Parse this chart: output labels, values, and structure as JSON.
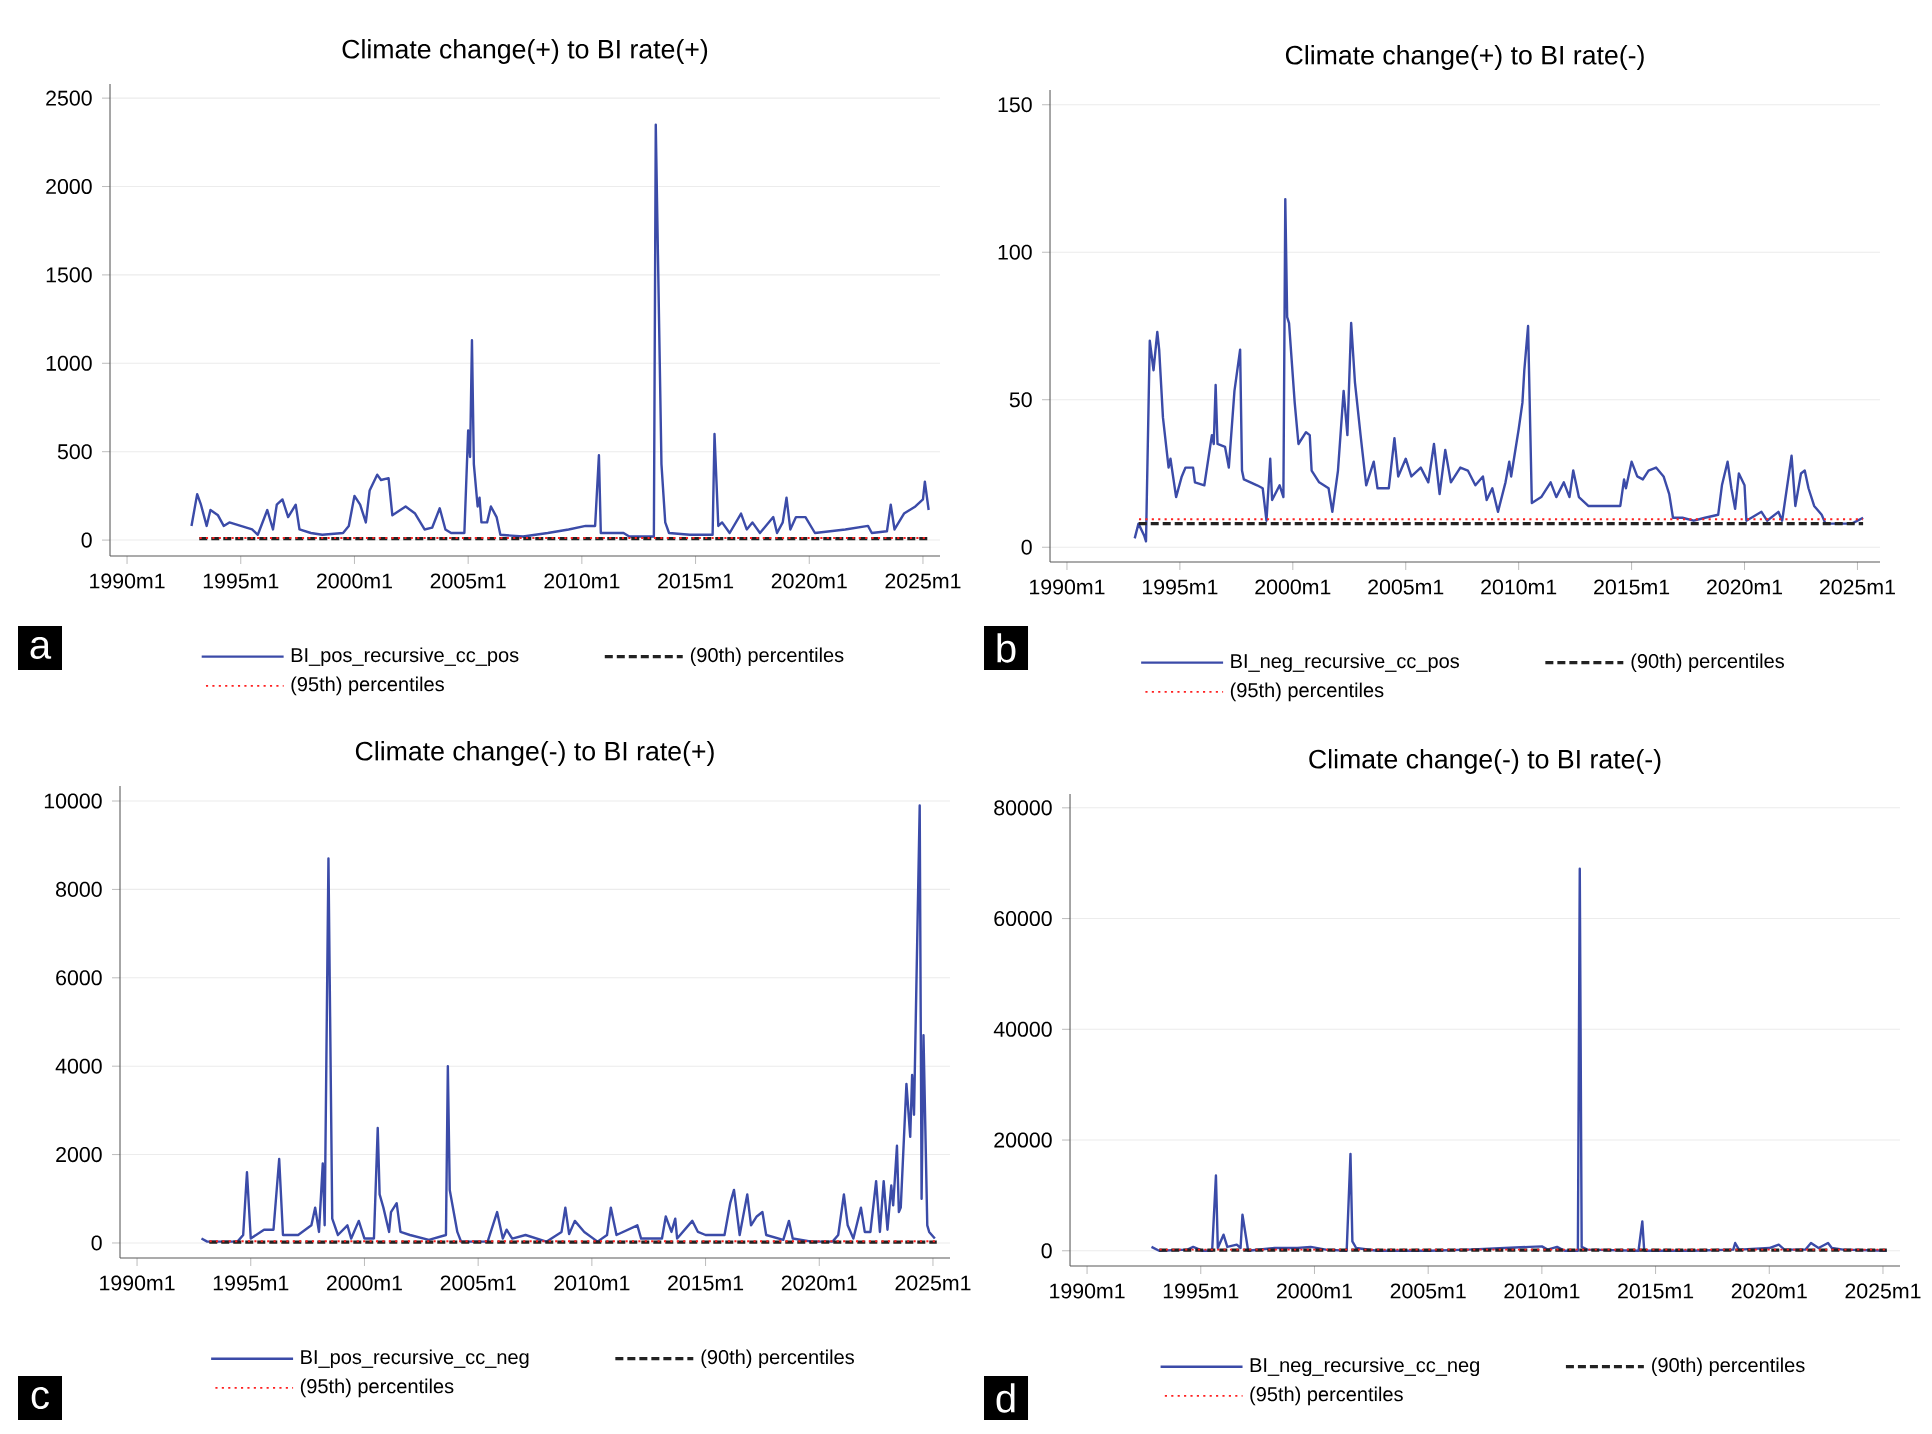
{
  "chart_data": [
    {
      "type": "line",
      "title": "Climate change(+) to BI rate(+)",
      "xlim": [
        "1989-04",
        "2025-10"
      ],
      "ylim": [
        -90,
        2580
      ],
      "xticks": [
        {
          "value": "1990-01",
          "label": "1990m1"
        },
        {
          "value": "1995-01",
          "label": "1995m1"
        },
        {
          "value": "2000-01",
          "label": "2000m1"
        },
        {
          "value": "2005-01",
          "label": "2005m1"
        },
        {
          "value": "2010-01",
          "label": "2010m1"
        },
        {
          "value": "2015-01",
          "label": "2015m1"
        },
        {
          "value": "2020-01",
          "label": "2020m1"
        },
        {
          "value": "2025-01",
          "label": "2025m1"
        }
      ],
      "yticks": [
        0,
        500,
        1000,
        1500,
        2000,
        2500
      ],
      "grid": "y",
      "legend": "bottom",
      "annotations": [
        "a"
      ],
      "series": [
        {
          "name": "BI_pos_recursive_cc_pos",
          "color": "#3b4ba8",
          "line_style": "solid",
          "x": [
            "1992-11",
            "1993-02",
            "1993-04",
            "1993-07",
            "1993-09",
            "1994-01",
            "1994-04",
            "1994-07",
            "1995-07",
            "1995-10",
            "1996-03",
            "1996-06",
            "1996-08",
            "1996-11",
            "1997-02",
            "1997-06",
            "1997-08",
            "1998-02",
            "1998-08",
            "1999-07",
            "1999-10",
            "2000-01",
            "2000-04",
            "2000-07",
            "2000-09",
            "2001-01",
            "2001-03",
            "2001-07",
            "2001-09",
            "2002-04",
            "2002-09",
            "2003-02",
            "2003-06",
            "2003-10",
            "2004-01",
            "2004-04",
            "2004-11",
            "2005-01",
            "2005-02",
            "2005-03",
            "2005-04",
            "2005-06",
            "2005-07",
            "2005-08",
            "2005-11",
            "2006-01",
            "2006-04",
            "2006-06",
            "2007-06",
            "2008-07",
            "2009-06",
            "2010-03",
            "2010-08",
            "2010-10",
            "2010-11",
            "2011-11",
            "2012-02",
            "2013-02",
            "2013-03",
            "2013-04",
            "2013-07",
            "2013-09",
            "2013-11",
            "2014-10",
            "2015-10",
            "2015-11",
            "2016-01",
            "2016-03",
            "2016-07",
            "2017-01",
            "2017-04",
            "2017-07",
            "2017-11",
            "2018-06",
            "2018-08",
            "2018-11",
            "2019-01",
            "2019-03",
            "2019-06",
            "2019-11",
            "2020-04",
            "2021-08",
            "2022-08",
            "2022-10",
            "2023-06",
            "2023-08",
            "2023-10",
            "2024-03",
            "2024-09",
            "2025-01",
            "2025-02",
            "2025-04"
          ],
          "values": [
            80,
            260,
            200,
            80,
            170,
            140,
            80,
            100,
            60,
            30,
            170,
            60,
            200,
            230,
            130,
            200,
            60,
            40,
            30,
            40,
            80,
            250,
            200,
            100,
            280,
            370,
            340,
            350,
            140,
            190,
            150,
            60,
            70,
            180,
            60,
            40,
            40,
            620,
            470,
            1130,
            430,
            190,
            240,
            100,
            100,
            190,
            130,
            30,
            20,
            40,
            60,
            80,
            80,
            480,
            40,
            40,
            20,
            20,
            20,
            2350,
            430,
            100,
            40,
            30,
            30,
            600,
            80,
            100,
            40,
            150,
            60,
            100,
            40,
            130,
            40,
            100,
            240,
            60,
            130,
            130,
            40,
            60,
            80,
            40,
            50,
            200,
            60,
            150,
            190,
            230,
            330,
            170
          ]
        },
        {
          "name": "(90th) percentiles",
          "color": "#222222",
          "line_style": "dashed",
          "x": [
            "1993-01",
            "2025-04"
          ],
          "values": [
            8,
            8
          ]
        },
        {
          "name": "(95th) percentiles",
          "color": "#ff2020",
          "line_style": "dotted",
          "x": [
            "1993-01",
            "2025-04"
          ],
          "values": [
            12,
            12
          ]
        }
      ]
    },
    {
      "type": "line",
      "title": "Climate change(+) to BI rate(-)",
      "xlim": [
        "1989-04",
        "2026-01"
      ],
      "ylim": [
        -5,
        155
      ],
      "xticks": [
        {
          "value": "1990-01",
          "label": "1990m1"
        },
        {
          "value": "1995-01",
          "label": "1995m1"
        },
        {
          "value": "2000-01",
          "label": "2000m1"
        },
        {
          "value": "2005-01",
          "label": "2005m1"
        },
        {
          "value": "2010-01",
          "label": "2010m1"
        },
        {
          "value": "2015-01",
          "label": "2015m1"
        },
        {
          "value": "2020-01",
          "label": "2020m1"
        },
        {
          "value": "2025-01",
          "label": "2025m1"
        }
      ],
      "yticks": [
        0,
        50,
        100,
        150
      ],
      "grid": "y",
      "legend": "bottom",
      "annotations": [
        "b"
      ],
      "series": [
        {
          "name": "BI_neg_recursive_cc_pos",
          "color": "#3b4ba8",
          "line_style": "solid",
          "x": [
            "1993-01",
            "1993-03",
            "1993-06",
            "1993-07",
            "1993-09",
            "1993-11",
            "1994-01",
            "1994-02",
            "1994-04",
            "1994-07",
            "1994-08",
            "1994-11",
            "1995-02",
            "1995-04",
            "1995-08",
            "1995-09",
            "1996-02",
            "1996-06",
            "1996-07",
            "1996-08",
            "1996-09",
            "1997-01",
            "1997-03",
            "1997-06",
            "1997-09",
            "1997-10",
            "1997-11",
            "1998-06",
            "1998-09",
            "1998-11",
            "1999-01",
            "1999-02",
            "1999-06",
            "1999-08",
            "1999-09",
            "1999-10",
            "1999-11",
            "2000-02",
            "2000-04",
            "2000-08",
            "2000-10",
            "2000-11",
            "2001-03",
            "2001-08",
            "2001-10",
            "2002-01",
            "2002-04",
            "2002-06",
            "2002-08",
            "2002-10",
            "2003-01",
            "2003-04",
            "2003-08",
            "2003-10",
            "2004-04",
            "2004-07",
            "2004-09",
            "2005-01",
            "2005-04",
            "2005-09",
            "2006-01",
            "2006-04",
            "2006-07",
            "2006-10",
            "2007-01",
            "2007-06",
            "2007-10",
            "2008-02",
            "2008-06",
            "2008-08",
            "2008-11",
            "2009-02",
            "2009-06",
            "2009-08",
            "2009-09",
            "2010-01",
            "2010-03",
            "2010-04",
            "2010-06",
            "2010-08",
            "2011-01",
            "2011-06",
            "2011-09",
            "2012-01",
            "2012-04",
            "2012-06",
            "2012-09",
            "2013-02",
            "2014-02",
            "2014-07",
            "2014-09",
            "2014-10",
            "2015-01",
            "2015-04",
            "2015-07",
            "2015-10",
            "2016-02",
            "2016-06",
            "2016-09",
            "2016-11",
            "2017-04",
            "2017-10",
            "2018-04",
            "2018-11",
            "2019-01",
            "2019-04",
            "2019-06",
            "2019-08",
            "2019-10",
            "2020-01",
            "2020-02",
            "2020-10",
            "2021-01",
            "2021-07",
            "2021-09",
            "2022-02",
            "2022-04",
            "2022-07",
            "2022-09",
            "2022-11",
            "2023-02",
            "2023-06",
            "2023-08",
            "2024-10",
            "2025-04"
          ],
          "values": [
            3,
            8,
            4,
            2,
            70,
            60,
            73,
            67,
            44,
            27,
            30,
            17,
            24,
            27,
            27,
            22,
            21,
            38,
            35,
            55,
            35,
            34,
            27,
            53,
            67,
            26,
            23,
            21,
            20,
            9,
            30,
            16,
            21,
            17,
            118,
            78,
            76,
            49,
            35,
            39,
            38,
            26,
            22,
            20,
            12,
            26,
            53,
            38,
            76,
            56,
            38,
            21,
            29,
            20,
            20,
            37,
            24,
            30,
            24,
            27,
            22,
            35,
            18,
            33,
            22,
            27,
            26,
            21,
            24,
            16,
            20,
            12,
            22,
            29,
            24,
            40,
            49,
            60,
            75,
            15,
            17,
            22,
            17,
            22,
            17,
            26,
            17,
            14,
            14,
            14,
            23,
            20,
            29,
            24,
            23,
            26,
            27,
            24,
            18,
            10,
            10,
            9,
            10,
            11,
            21,
            29,
            20,
            13,
            25,
            21,
            9,
            12,
            9,
            12,
            9,
            31,
            14,
            25,
            26,
            20,
            14,
            11,
            8,
            8,
            10
          ]
        },
        {
          "name": "(90th) percentiles",
          "color": "#222222",
          "line_style": "dashed",
          "x": [
            "1993-01",
            "2025-04"
          ],
          "values": [
            8,
            8
          ]
        },
        {
          "name": "(95th) percentiles",
          "color": "#ff2020",
          "line_style": "dotted",
          "x": [
            "1993-01",
            "2025-04"
          ],
          "values": [
            9.5,
            9.5
          ]
        }
      ]
    },
    {
      "type": "line",
      "title": "Climate change(-) to BI rate(+)",
      "xlim": [
        "1989-04",
        "2025-10"
      ],
      "ylim": [
        -340,
        10340
      ],
      "xticks": [
        {
          "value": "1990-01",
          "label": "1990m1"
        },
        {
          "value": "1995-01",
          "label": "1995m1"
        },
        {
          "value": "2000-01",
          "label": "2000m1"
        },
        {
          "value": "2005-01",
          "label": "2005m1"
        },
        {
          "value": "2010-01",
          "label": "2010m1"
        },
        {
          "value": "2015-01",
          "label": "2015m1"
        },
        {
          "value": "2020-01",
          "label": "2020m1"
        },
        {
          "value": "2025-01",
          "label": "2025m1"
        }
      ],
      "yticks": [
        0,
        2000,
        4000,
        6000,
        8000,
        10000
      ],
      "grid": "y",
      "legend": "bottom",
      "annotations": [
        "c"
      ],
      "series": [
        {
          "name": "BI_pos_recursive_cc_neg",
          "color": "#3b4ba8",
          "line_style": "solid",
          "x": [
            "1992-11",
            "1993-02",
            "1994-06",
            "1994-09",
            "1994-11",
            "1995-01",
            "1995-08",
            "1996-01",
            "1996-04",
            "1996-06",
            "1997-02",
            "1997-09",
            "1997-11",
            "1998-01",
            "1998-03",
            "1998-04",
            "1998-06",
            "1998-08",
            "1998-11",
            "1999-04",
            "1999-06",
            "1999-10",
            "2000-01",
            "2000-06",
            "2000-08",
            "2000-09",
            "2000-11",
            "2001-02",
            "2001-03",
            "2001-06",
            "2001-08",
            "2002-01",
            "2002-11",
            "2003-08",
            "2003-09",
            "2003-10",
            "2004-02",
            "2004-04",
            "2005-06",
            "2005-11",
            "2006-02",
            "2006-04",
            "2006-07",
            "2007-02",
            "2008-01",
            "2008-09",
            "2008-11",
            "2009-01",
            "2009-04",
            "2009-09",
            "2010-04",
            "2010-09",
            "2010-11",
            "2011-02",
            "2012-01",
            "2012-03",
            "2013-02",
            "2013-04",
            "2013-07",
            "2013-09",
            "2013-10",
            "2014-06",
            "2014-09",
            "2015-01",
            "2015-11",
            "2016-02",
            "2016-04",
            "2016-07",
            "2016-11",
            "2017-01",
            "2017-04",
            "2017-07",
            "2017-09",
            "2018-06",
            "2018-09",
            "2018-11",
            "2019-09",
            "2020-08",
            "2020-11",
            "2021-02",
            "2021-04",
            "2021-07",
            "2021-11",
            "2022-01",
            "2022-04",
            "2022-07",
            "2022-09",
            "2022-11",
            "2023-01",
            "2023-03",
            "2023-04",
            "2023-06",
            "2023-07",
            "2023-08",
            "2023-11",
            "2024-01",
            "2024-02",
            "2024-03",
            "2024-06",
            "2024-07",
            "2024-08",
            "2024-10",
            "2024-11",
            "2025-02"
          ],
          "values": [
            100,
            30,
            30,
            180,
            1600,
            100,
            300,
            300,
            1900,
            180,
            180,
            400,
            800,
            250,
            1800,
            400,
            8700,
            550,
            180,
            400,
            100,
            500,
            100,
            100,
            2600,
            1100,
            800,
            250,
            700,
            900,
            250,
            180,
            70,
            180,
            4000,
            1200,
            250,
            30,
            30,
            700,
            100,
            300,
            100,
            180,
            30,
            250,
            800,
            200,
            500,
            250,
            30,
            180,
            800,
            180,
            400,
            100,
            100,
            600,
            250,
            550,
            100,
            500,
            250,
            180,
            180,
            900,
            1200,
            180,
            1100,
            400,
            600,
            700,
            180,
            70,
            500,
            100,
            30,
            30,
            180,
            1100,
            400,
            100,
            800,
            250,
            250,
            1400,
            250,
            1400,
            300,
            1300,
            850,
            2200,
            700,
            800,
            3600,
            2400,
            3800,
            2900,
            9900,
            1000,
            4700,
            400,
            250,
            100
          ]
        },
        {
          "name": "(90th) percentiles",
          "color": "#222222",
          "line_style": "dashed",
          "x": [
            "1993-01",
            "2025-03"
          ],
          "values": [
            20,
            20
          ]
        },
        {
          "name": "(95th) percentiles",
          "color": "#ff2020",
          "line_style": "dotted",
          "x": [
            "1993-01",
            "2025-03"
          ],
          "values": [
            40,
            40
          ]
        }
      ]
    },
    {
      "type": "line",
      "title": "Climate change(-) to BI rate(-)",
      "xlim": [
        "1989-04",
        "2025-10"
      ],
      "ylim": [
        -2750,
        82500
      ],
      "xticks": [
        {
          "value": "1990-01",
          "label": "1990m1"
        },
        {
          "value": "1995-01",
          "label": "1995m1"
        },
        {
          "value": "2000-01",
          "label": "2000m1"
        },
        {
          "value": "2005-01",
          "label": "2005m1"
        },
        {
          "value": "2010-01",
          "label": "2010m1"
        },
        {
          "value": "2015-01",
          "label": "2015m1"
        },
        {
          "value": "2020-01",
          "label": "2020m1"
        },
        {
          "value": "2025-01",
          "label": "2025m1"
        }
      ],
      "yticks": [
        0,
        20000,
        40000,
        60000,
        80000
      ],
      "grid": "y",
      "legend": "bottom",
      "annotations": [
        "d"
      ],
      "series": [
        {
          "name": "BI_neg_recursive_cc_neg",
          "color": "#3b4ba8",
          "line_style": "solid",
          "x": [
            "1992-11",
            "1993-03",
            "1994-06",
            "1994-09",
            "1995-02",
            "1995-07",
            "1995-09",
            "1995-10",
            "1996-01",
            "1996-03",
            "1996-08",
            "1996-10",
            "1996-11",
            "1997-02",
            "1998-04",
            "1999-04",
            "1999-11",
            "2000-07",
            "2001-06",
            "2001-08",
            "2001-09",
            "2001-11",
            "2002-10",
            "2005-02",
            "2006-10",
            "2010-01",
            "2010-04",
            "2010-09",
            "2011-01",
            "2011-08",
            "2011-09",
            "2011-10",
            "2012-01",
            "2014-04",
            "2014-06",
            "2014-07",
            "2016-08",
            "2018-06",
            "2018-07",
            "2018-09",
            "2020-01",
            "2020-06",
            "2020-09",
            "2021-08",
            "2021-11",
            "2022-03",
            "2022-08",
            "2022-10",
            "2023-04",
            "2025-03"
          ],
          "values": [
            700,
            0,
            200,
            700,
            0,
            0,
            13600,
            500,
            2900,
            700,
            1100,
            500,
            6500,
            0,
            500,
            500,
            700,
            200,
            0,
            17500,
            1700,
            500,
            0,
            0,
            200,
            800,
            200,
            700,
            0,
            0,
            69000,
            700,
            200,
            0,
            5300,
            0,
            0,
            200,
            1400,
            200,
            500,
            1100,
            200,
            200,
            1400,
            500,
            1400,
            500,
            200,
            0
          ]
        },
        {
          "name": "(90th) percentiles",
          "color": "#222222",
          "line_style": "dashed",
          "x": [
            "1993-01",
            "2025-03"
          ],
          "values": [
            100,
            100
          ]
        },
        {
          "name": "(95th) percentiles",
          "color": "#ff2020",
          "line_style": "dotted",
          "x": [
            "1993-01",
            "2025-03"
          ],
          "values": [
            200,
            200
          ]
        }
      ]
    }
  ]
}
